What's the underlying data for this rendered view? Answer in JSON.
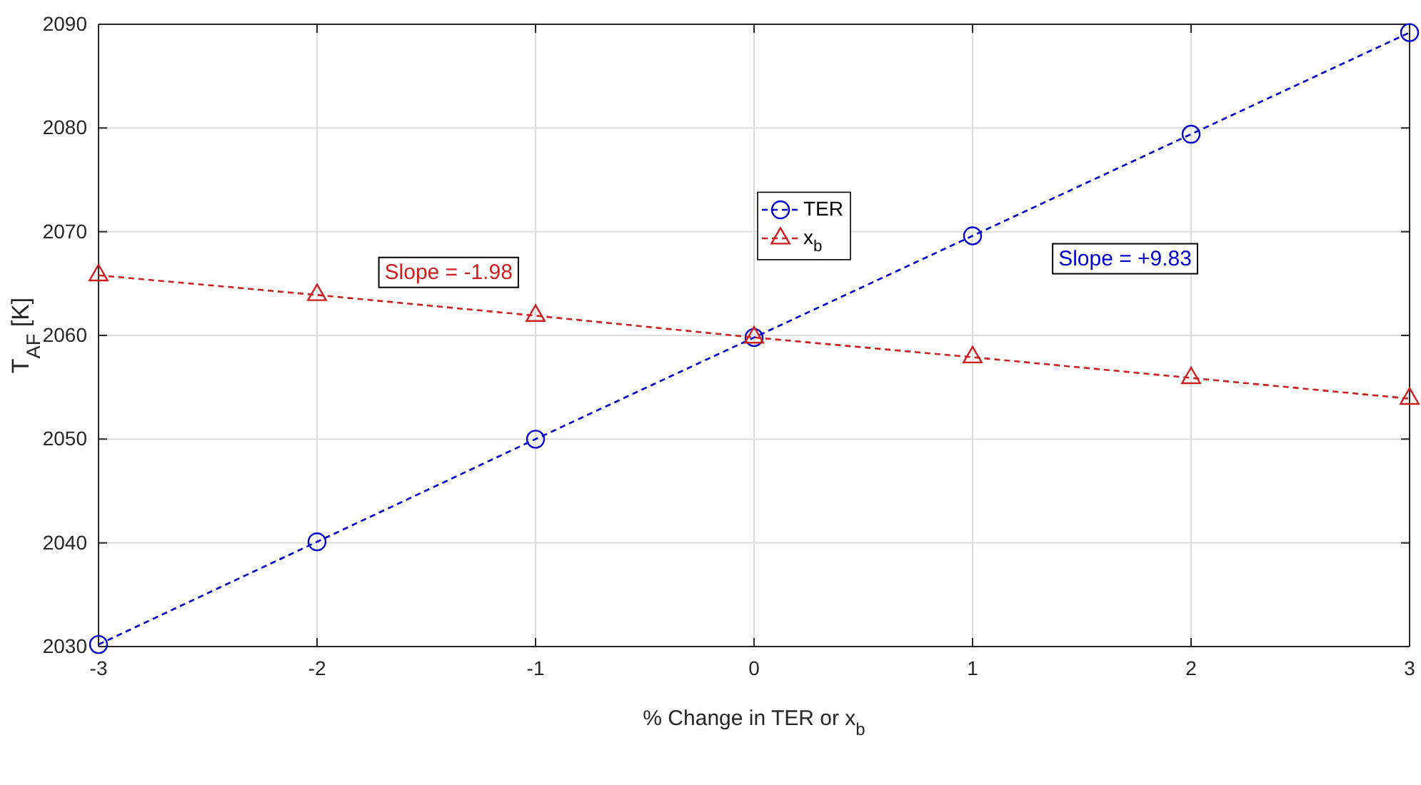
{
  "chart_data": {
    "type": "line",
    "xlabel": "% Change in TER or x$_{b}$",
    "ylabel": "T$_{AF}$ [K]",
    "x": [
      -3,
      -2,
      -1,
      0,
      1,
      2,
      3
    ],
    "series": [
      {
        "name": "TER",
        "color": "#0000cc",
        "marker": "circle",
        "values": [
          2030.2,
          2040.1,
          2050.0,
          2059.8,
          2069.6,
          2079.4,
          2089.2
        ]
      },
      {
        "name": "x$_{b}$",
        "color": "#cc1f1f",
        "marker": "triangle",
        "values": [
          2065.8,
          2063.9,
          2061.9,
          2059.8,
          2057.9,
          2055.9,
          2053.9
        ]
      }
    ],
    "xlim": [
      -3,
      3
    ],
    "xticks": [
      -3,
      -2,
      -1,
      0,
      1,
      2,
      3
    ],
    "ylim": [
      2030,
      2090
    ],
    "yticks": [
      2030,
      2040,
      2050,
      2060,
      2070,
      2080,
      2090
    ],
    "grid": true,
    "legend": "top",
    "line_style": "dashed",
    "annotations": [
      "Slope = +9.83",
      "Slope = -1.98"
    ]
  }
}
